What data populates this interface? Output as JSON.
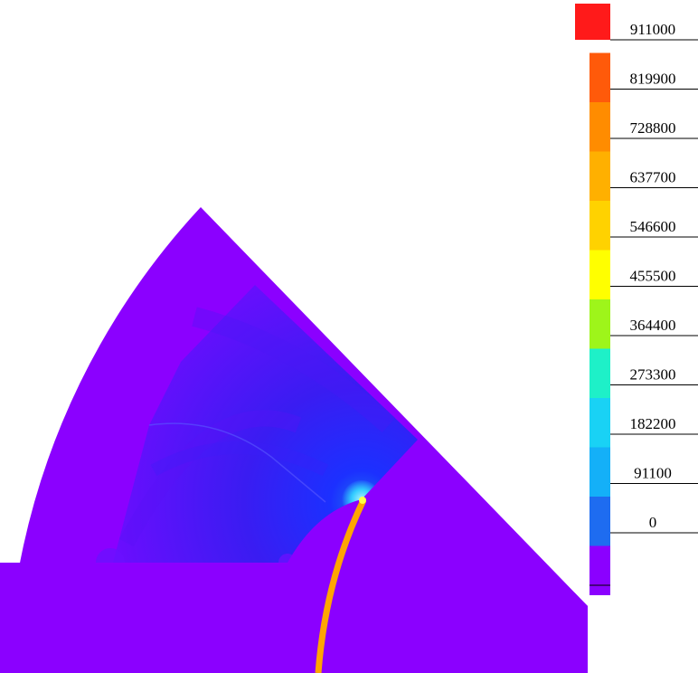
{
  "colorbar": {
    "labels": [
      "911000",
      "819900",
      "728800",
      "637700",
      "546600",
      "455500",
      "364400",
      "273300",
      "182200",
      "91100",
      "0"
    ],
    "colors": [
      "#ff1a1a",
      "#ff5a0a",
      "#ff8c00",
      "#ffb000",
      "#ffd200",
      "#ffff00",
      "#9ef51a",
      "#1ef0c8",
      "#19d2f5",
      "#14b0f8",
      "#1e6cf0",
      "#8b00ff"
    ]
  },
  "field": {
    "background_color": "#8b00ff",
    "low_region_color": "#2a2cff",
    "hotspot_color": "#33ccff",
    "arc_stripe_color": "#ffa500"
  }
}
